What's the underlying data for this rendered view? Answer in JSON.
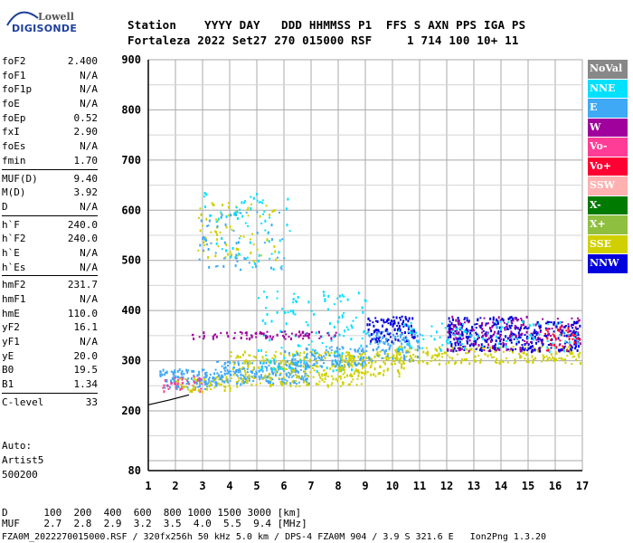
{
  "logo": {
    "brand": "Lowell",
    "product": "DIGISONDE"
  },
  "header": {
    "row1": "Station    YYYY DAY   DDD HHMMSS P1  FFS S AXN PPS IGA PS",
    "row2": "Fortaleza 2022 Set27 270 015000 RSF     1 714 100 10+ 11"
  },
  "params": [
    {
      "name": "foF2",
      "value": "2.400"
    },
    {
      "name": "foF1",
      "value": "N/A"
    },
    {
      "name": "foF1p",
      "value": "N/A"
    },
    {
      "name": "foE",
      "value": "N/A"
    },
    {
      "name": "foEp",
      "value": "0.52"
    },
    {
      "name": "fxI",
      "value": "2.90"
    },
    {
      "name": "foEs",
      "value": "N/A"
    },
    {
      "name": "fmin",
      "value": "1.70"
    },
    {
      "sep": true
    },
    {
      "name": "MUF(D)",
      "value": "9.40"
    },
    {
      "name": "M(D)",
      "value": "3.92"
    },
    {
      "name": "D",
      "value": "N/A"
    },
    {
      "sep": true
    },
    {
      "name": "h`F",
      "value": "240.0"
    },
    {
      "name": "h`F2",
      "value": "240.0"
    },
    {
      "name": "h`E",
      "value": "N/A"
    },
    {
      "name": "h`Es",
      "value": "N/A"
    },
    {
      "sep": true
    },
    {
      "name": "hmF2",
      "value": "231.7"
    },
    {
      "name": "hmF1",
      "value": "N/A"
    },
    {
      "name": "hmE",
      "value": "110.0"
    },
    {
      "name": "yF2",
      "value": "16.1"
    },
    {
      "name": "yF1",
      "value": "N/A"
    },
    {
      "name": "yE",
      "value": "20.0"
    },
    {
      "name": "B0",
      "value": "19.5"
    },
    {
      "name": "B1",
      "value": "1.34"
    },
    {
      "sep": true
    },
    {
      "name": "C-level",
      "value": "33"
    }
  ],
  "auto": {
    "label": "Auto:",
    "program": "Artist5",
    "version": "500200"
  },
  "distance": {
    "d_row": "D      100  200  400  600  800 1000 1500 3000 [km]",
    "muf_row": "MUF    2.7  2.8  2.9  3.2  3.5  4.0  5.5  9.4 [MHz]"
  },
  "footer": "FZA0M_2022270015000.RSF / 320fx256h 50 kHz 5.0 km / DPS-4 FZA0M 904 / 3.9 S 321.6 E   Ion2Png 1.3.20",
  "legend": [
    {
      "label": "NoVal",
      "color": "#888888"
    },
    {
      "label": "NNE",
      "color": "#00e0ff"
    },
    {
      "label": "E",
      "color": "#3fa9f5"
    },
    {
      "label": "W",
      "color": "#a0009c"
    },
    {
      "label": "Vo-",
      "color": "#ff3d96"
    },
    {
      "label": "Vo+",
      "color": "#ff0033"
    },
    {
      "label": "SSW",
      "color": "#ffb0b0"
    },
    {
      "label": "X-",
      "color": "#007a00"
    },
    {
      "label": "X+",
      "color": "#8fbf3f"
    },
    {
      "label": "SSE",
      "color": "#d0d000"
    },
    {
      "label": "NNW",
      "color": "#0000dd"
    }
  ],
  "chart_data": {
    "type": "scatter",
    "xlim": [
      1,
      17
    ],
    "ylim": [
      80,
      900
    ],
    "x_ticks": [
      1,
      2,
      3,
      4,
      5,
      6,
      7,
      8,
      9,
      10,
      11,
      12,
      13,
      14,
      15,
      16,
      17
    ],
    "y_ticks": [
      80,
      200,
      300,
      400,
      500,
      600,
      700,
      800,
      900
    ],
    "grid": true,
    "regions": [
      {
        "series": "E",
        "x": [
          1.4,
          3.5
        ],
        "y": [
          245,
          285
        ],
        "density": 0.55
      },
      {
        "series": "Vo-",
        "x": [
          1.5,
          3.0
        ],
        "y": [
          240,
          270
        ],
        "density": 0.3
      },
      {
        "series": "SSE",
        "x": [
          2.0,
          4.0
        ],
        "y": [
          240,
          270
        ],
        "density": 0.3
      },
      {
        "series": "E",
        "x": [
          3.5,
          7.0
        ],
        "y": [
          255,
          300
        ],
        "density": 0.5
      },
      {
        "series": "SSE",
        "x": [
          4.0,
          9.0
        ],
        "y": [
          250,
          320
        ],
        "density": 0.25
      },
      {
        "series": "NNE",
        "x": [
          5.0,
          9.0
        ],
        "y": [
          280,
          440
        ],
        "density": 0.08
      },
      {
        "series": "E",
        "x": [
          6.0,
          9.0
        ],
        "y": [
          290,
          330
        ],
        "density": 0.35
      },
      {
        "series": "W",
        "x": [
          2.5,
          8.0
        ],
        "y": [
          345,
          360
        ],
        "density": 0.35
      },
      {
        "series": "SSE",
        "x": [
          8.0,
          10.5
        ],
        "y": [
          270,
          320
        ],
        "density": 0.35
      },
      {
        "series": "NNW",
        "x": [
          9.0,
          10.8
        ],
        "y": [
          340,
          390
        ],
        "density": 0.45
      },
      {
        "series": "E",
        "x": [
          9.0,
          11.0
        ],
        "y": [
          300,
          360
        ],
        "density": 0.3
      },
      {
        "series": "SSE",
        "x": [
          10.0,
          16.9
        ],
        "y": [
          295,
          330
        ],
        "density": 0.3
      },
      {
        "series": "NNW",
        "x": [
          12.0,
          14.8
        ],
        "y": [
          320,
          390
        ],
        "density": 0.4
      },
      {
        "series": "W",
        "x": [
          12.0,
          16.9
        ],
        "y": [
          320,
          390
        ],
        "density": 0.18
      },
      {
        "series": "NNW",
        "x": [
          14.8,
          16.9
        ],
        "y": [
          320,
          380
        ],
        "density": 0.35
      },
      {
        "series": "Vo+",
        "x": [
          15.5,
          16.9
        ],
        "y": [
          320,
          370
        ],
        "density": 0.2
      },
      {
        "series": "NNE",
        "x": [
          10.0,
          16.9
        ],
        "y": [
          320,
          380
        ],
        "density": 0.08
      },
      {
        "series": "SSE",
        "x": [
          2.8,
          5.8
        ],
        "y": [
          500,
          620
        ],
        "density": 0.07
      },
      {
        "series": "NNE",
        "x": [
          3.0,
          6.2
        ],
        "y": [
          480,
          640
        ],
        "density": 0.05
      },
      {
        "series": "E",
        "x": [
          2.8,
          6.0
        ],
        "y": [
          480,
          600
        ],
        "density": 0.05
      }
    ],
    "line": {
      "x": [
        1.0,
        1.8,
        2.5
      ],
      "y": [
        212,
        222,
        232
      ]
    }
  }
}
